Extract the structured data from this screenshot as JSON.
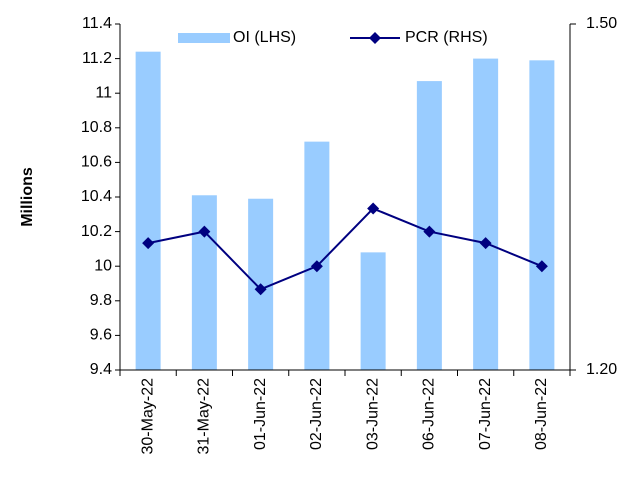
{
  "chart_data": {
    "type": "bar",
    "y_label": "Millions",
    "categories": [
      "30-May-22",
      "31-May-22",
      "01-Jun-22",
      "02-Jun-22",
      "03-Jun-22",
      "06-Jun-22",
      "07-Jun-22",
      "08-Jun-22"
    ],
    "series": [
      {
        "name": "OI (LHS)",
        "type": "bar",
        "color": "#99ccff",
        "values": [
          11.24,
          10.41,
          10.39,
          10.72,
          10.08,
          11.07,
          11.2,
          11.19
        ]
      },
      {
        "name": "PCR (RHS)",
        "type": "line",
        "axis": "y2",
        "color": "#000080",
        "values": [
          1.31,
          1.32,
          1.27,
          1.29,
          1.34,
          1.32,
          1.31,
          1.29
        ]
      }
    ],
    "ylim": [
      9.4,
      11.4
    ],
    "yticks": [
      9.4,
      9.6,
      9.8,
      10,
      10.2,
      10.4,
      10.6,
      10.8,
      11,
      11.2,
      11.4
    ],
    "y2lim": [
      1.2,
      1.5
    ],
    "y2ticks": [
      {
        "value": 1.2,
        "label": "1.20"
      },
      {
        "value": 1.5,
        "label": "1.50"
      }
    ],
    "legend": "top"
  }
}
